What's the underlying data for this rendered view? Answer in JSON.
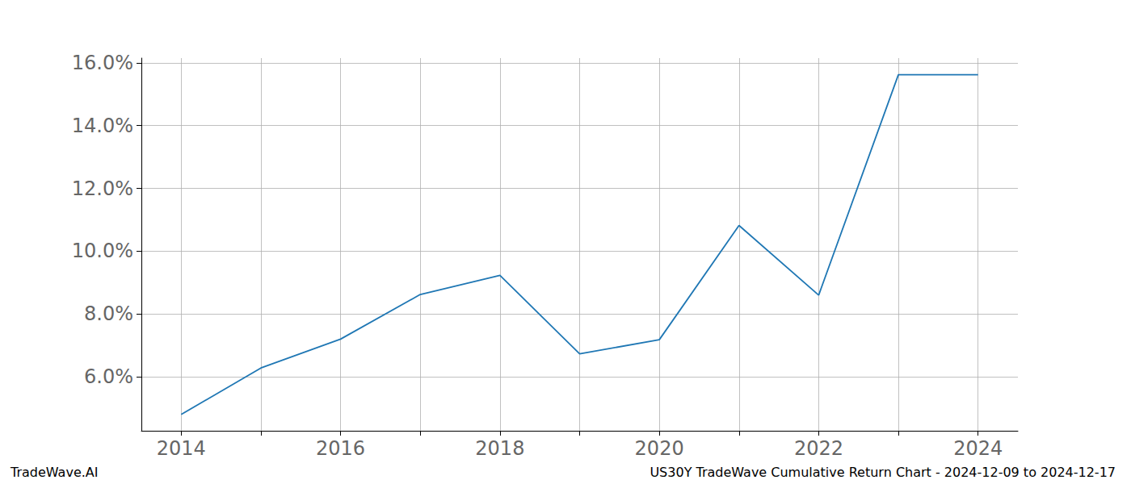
{
  "chart_data": {
    "type": "line",
    "title": "US30Y TradeWave Cumulative Return Chart - 2024-12-09 to 2024-12-17",
    "annotations": [
      "TradeWave.AI"
    ],
    "x": [
      2014,
      2015,
      2016,
      2017,
      2018,
      2019,
      2020,
      2021,
      2022,
      2023,
      2024
    ],
    "values": [
      4.8,
      6.28,
      7.2,
      8.62,
      9.23,
      6.73,
      7.18,
      10.82,
      8.6,
      15.62,
      15.62
    ],
    "color": "#1f77b4",
    "xlim": [
      2013.5,
      2024.5
    ],
    "xticks": [
      2014,
      2016,
      2018,
      2020,
      2022,
      2024
    ],
    "ylim": [
      4.28,
      16.15
    ],
    "yticks": [
      {
        "value": 6,
        "label": "6.0%"
      },
      {
        "value": 8,
        "label": "8.0%"
      },
      {
        "value": 10,
        "label": "10.0%"
      },
      {
        "value": 12,
        "label": "12.0%"
      },
      {
        "value": 14,
        "label": "14.0%"
      },
      {
        "value": 16,
        "label": "16.0%"
      }
    ],
    "grid": true
  }
}
